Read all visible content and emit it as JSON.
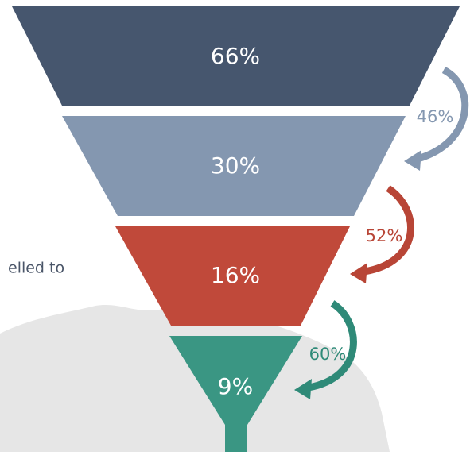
{
  "chart_data": {
    "type": "funnel",
    "values": [
      66,
      30,
      16,
      9
    ],
    "value_labels": [
      "66%",
      "30%",
      "16%",
      "9%"
    ],
    "colors": [
      "#46566e",
      "#8497b0",
      "#c0493a",
      "#3a9683"
    ],
    "conversions": [
      46,
      52,
      60
    ],
    "conversion_labels": [
      "46%",
      "52%",
      "60%"
    ],
    "conversion_colors": [
      "#8497b0",
      "#b84536",
      "#2f8a78"
    ],
    "annotation": "elled to"
  }
}
